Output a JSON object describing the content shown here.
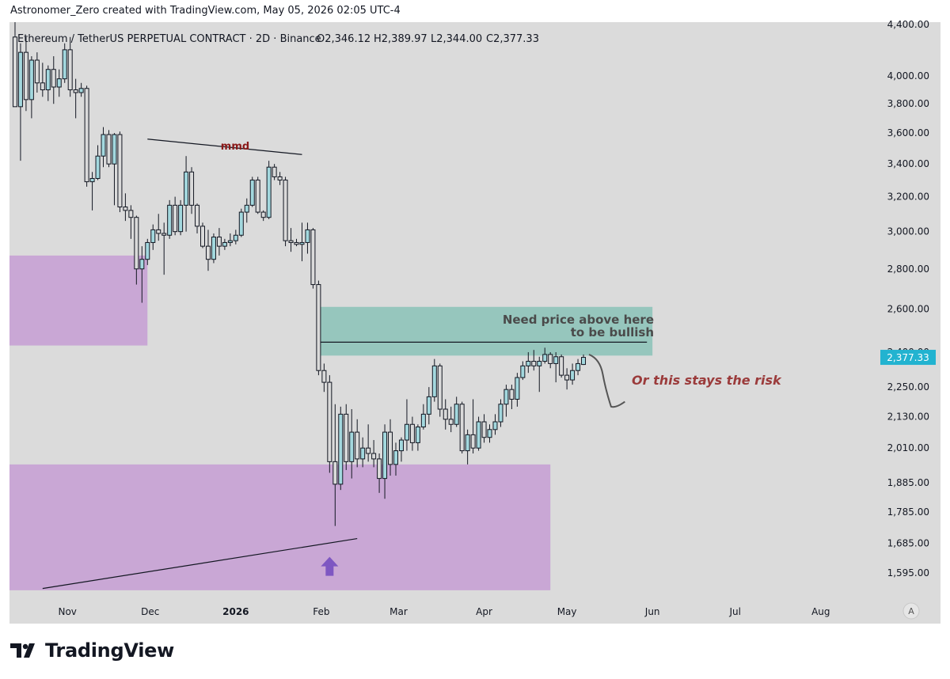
{
  "header": {
    "attribution": "Astronomer_Zero created with TradingView.com, May 05, 2026 02:05 UTC-4"
  },
  "footer": {
    "brand": "TradingView"
  },
  "chart_data": {
    "type": "candlestick",
    "title": "Ethereum / TetherUS PERPETUAL CONTRACT · 2D · Binance",
    "ohlc_label": {
      "o": "O2,346.12",
      "h": "H2,389.97",
      "l": "L2,344.00",
      "c": "C2,377.33"
    },
    "last_price": "2,377.33",
    "y_scale": "log",
    "ylim": [
      1520,
      4420
    ],
    "y_ticks": [
      {
        "v": 4400,
        "label": "4,400.00"
      },
      {
        "v": 4000,
        "label": "4,000.00"
      },
      {
        "v": 3800,
        "label": "3,800.00"
      },
      {
        "v": 3600,
        "label": "3,600.00"
      },
      {
        "v": 3400,
        "label": "3,400.00"
      },
      {
        "v": 3200,
        "label": "3,200.00"
      },
      {
        "v": 3000,
        "label": "3,000.00"
      },
      {
        "v": 2800,
        "label": "2,800.00"
      },
      {
        "v": 2600,
        "label": "2,600.00"
      },
      {
        "v": 2400,
        "label": "2,400.00"
      },
      {
        "v": 2250,
        "label": "2,250.00"
      },
      {
        "v": 2130,
        "label": "2,130.00"
      },
      {
        "v": 2010,
        "label": "2,010.00"
      },
      {
        "v": 1885,
        "label": "1,885.00"
      },
      {
        "v": 1785,
        "label": "1,785.00"
      },
      {
        "v": 1685,
        "label": "1,685.00"
      },
      {
        "v": 1595,
        "label": "1,595.00"
      }
    ],
    "x_start": "2025-10-11",
    "x_end": "2026-08-22",
    "x_ticks": [
      {
        "date": "2025-11-01",
        "label": "Nov",
        "bold": false
      },
      {
        "date": "2025-12-01",
        "label": "Dec",
        "bold": false
      },
      {
        "date": "2026-01-01",
        "label": "2026",
        "bold": true
      },
      {
        "date": "2026-02-01",
        "label": "Feb",
        "bold": false
      },
      {
        "date": "2026-03-01",
        "label": "Mar",
        "bold": false
      },
      {
        "date": "2026-04-01",
        "label": "Apr",
        "bold": false
      },
      {
        "date": "2026-05-01",
        "label": "May",
        "bold": false
      },
      {
        "date": "2026-06-01",
        "label": "Jun",
        "bold": false
      },
      {
        "date": "2026-07-01",
        "label": "Jul",
        "bold": false
      },
      {
        "date": "2026-08-01",
        "label": "Aug",
        "bold": false
      }
    ],
    "candles": [
      [
        "2025-10-13",
        4300,
        4420,
        3780,
        3780
      ],
      [
        "2025-10-15",
        3780,
        4250,
        3420,
        4180
      ],
      [
        "2025-10-17",
        4180,
        4300,
        3750,
        3830
      ],
      [
        "2025-10-19",
        3830,
        4150,
        3700,
        4120
      ],
      [
        "2025-10-21",
        4120,
        4180,
        3880,
        3950
      ],
      [
        "2025-10-23",
        3950,
        4100,
        3850,
        3900
      ],
      [
        "2025-10-25",
        3900,
        4080,
        3820,
        4050
      ],
      [
        "2025-10-27",
        4050,
        4150,
        3800,
        3920
      ],
      [
        "2025-10-29",
        3920,
        4050,
        3850,
        3980
      ],
      [
        "2025-10-31",
        3980,
        4250,
        3950,
        4200
      ],
      [
        "2025-11-02",
        4200,
        4300,
        3850,
        3900
      ],
      [
        "2025-11-04",
        3900,
        3980,
        3700,
        3880
      ],
      [
        "2025-11-06",
        3880,
        3950,
        3850,
        3910
      ],
      [
        "2025-11-08",
        3910,
        3930,
        3260,
        3290
      ],
      [
        "2025-11-10",
        3290,
        3350,
        3120,
        3310
      ],
      [
        "2025-11-12",
        3310,
        3520,
        3300,
        3450
      ],
      [
        "2025-11-14",
        3450,
        3640,
        3380,
        3590
      ],
      [
        "2025-11-16",
        3590,
        3620,
        3380,
        3400
      ],
      [
        "2025-11-18",
        3400,
        3600,
        3150,
        3590
      ],
      [
        "2025-11-20",
        3590,
        3610,
        3110,
        3140
      ],
      [
        "2025-11-22",
        3140,
        3220,
        3060,
        3120
      ],
      [
        "2025-11-24",
        3120,
        3150,
        2960,
        3080
      ],
      [
        "2025-11-26",
        3080,
        3090,
        2720,
        2800
      ],
      [
        "2025-11-28",
        2800,
        2920,
        2630,
        2850
      ],
      [
        "2025-11-30",
        2850,
        2960,
        2820,
        2940
      ],
      [
        "2025-12-02",
        2940,
        3040,
        2900,
        3010
      ],
      [
        "2025-12-04",
        3010,
        3100,
        2950,
        2990
      ],
      [
        "2025-12-06",
        2990,
        3050,
        2770,
        2980
      ],
      [
        "2025-12-08",
        2980,
        3180,
        2960,
        3150
      ],
      [
        "2025-12-10",
        3150,
        3200,
        2980,
        3000
      ],
      [
        "2025-12-12",
        3000,
        3180,
        2980,
        3150
      ],
      [
        "2025-12-14",
        3150,
        3450,
        3000,
        3350
      ],
      [
        "2025-12-16",
        3350,
        3380,
        3100,
        3150
      ],
      [
        "2025-12-18",
        3150,
        3160,
        2990,
        3030
      ],
      [
        "2025-12-20",
        3030,
        3050,
        2910,
        2920
      ],
      [
        "2025-12-22",
        2920,
        3010,
        2790,
        2850
      ],
      [
        "2025-12-24",
        2850,
        2990,
        2830,
        2970
      ],
      [
        "2025-12-26",
        2970,
        3020,
        2870,
        2920
      ],
      [
        "2025-12-28",
        2920,
        2960,
        2900,
        2940
      ],
      [
        "2025-12-30",
        2940,
        2990,
        2920,
        2950
      ],
      [
        "2026-01-01",
        2950,
        3010,
        2930,
        2980
      ],
      [
        "2026-01-03",
        2980,
        3130,
        2970,
        3110
      ],
      [
        "2026-01-05",
        3110,
        3190,
        3050,
        3150
      ],
      [
        "2026-01-07",
        3150,
        3320,
        3140,
        3300
      ],
      [
        "2026-01-09",
        3300,
        3320,
        3100,
        3110
      ],
      [
        "2026-01-11",
        3110,
        3120,
        3060,
        3080
      ],
      [
        "2026-01-13",
        3080,
        3420,
        3070,
        3380
      ],
      [
        "2026-01-15",
        3380,
        3400,
        3300,
        3320
      ],
      [
        "2026-01-17",
        3320,
        3350,
        3270,
        3300
      ],
      [
        "2026-01-19",
        3300,
        3320,
        2920,
        2950
      ],
      [
        "2026-01-21",
        2950,
        3020,
        2890,
        2940
      ],
      [
        "2026-01-23",
        2940,
        2960,
        2920,
        2930
      ],
      [
        "2026-01-25",
        2930,
        3050,
        2840,
        2940
      ],
      [
        "2026-01-27",
        2940,
        3050,
        2880,
        3010
      ],
      [
        "2026-01-29",
        3010,
        3020,
        2700,
        2720
      ],
      [
        "2026-01-31",
        2720,
        2740,
        2300,
        2320
      ],
      [
        "2026-02-02",
        2320,
        2350,
        2230,
        2270
      ],
      [
        "2026-02-04",
        2270,
        2300,
        1920,
        1960
      ],
      [
        "2026-02-06",
        1960,
        2180,
        1740,
        1880
      ],
      [
        "2026-02-08",
        1880,
        2170,
        1860,
        2140
      ],
      [
        "2026-02-10",
        2140,
        2180,
        1930,
        1960
      ],
      [
        "2026-02-12",
        1960,
        2160,
        1900,
        2070
      ],
      [
        "2026-02-14",
        2070,
        2120,
        1940,
        1970
      ],
      [
        "2026-02-16",
        1970,
        2050,
        1940,
        2010
      ],
      [
        "2026-02-18",
        2010,
        2100,
        1960,
        1990
      ],
      [
        "2026-02-20",
        1990,
        2040,
        1940,
        1970
      ],
      [
        "2026-02-22",
        1970,
        1990,
        1850,
        1900
      ],
      [
        "2026-02-24",
        1900,
        2100,
        1830,
        2070
      ],
      [
        "2026-02-26",
        2070,
        2120,
        1910,
        1950
      ],
      [
        "2026-02-28",
        1950,
        2030,
        1910,
        2000
      ],
      [
        "2026-03-02",
        2000,
        2050,
        1960,
        2040
      ],
      [
        "2026-03-04",
        2040,
        2200,
        2000,
        2100
      ],
      [
        "2026-03-06",
        2100,
        2130,
        2000,
        2030
      ],
      [
        "2026-03-08",
        2030,
        2100,
        2000,
        2090
      ],
      [
        "2026-03-10",
        2090,
        2180,
        2080,
        2140
      ],
      [
        "2026-03-12",
        2140,
        2250,
        2100,
        2210
      ],
      [
        "2026-03-14",
        2210,
        2370,
        2190,
        2340
      ],
      [
        "2026-03-16",
        2340,
        2350,
        2130,
        2160
      ],
      [
        "2026-03-18",
        2160,
        2200,
        2080,
        2120
      ],
      [
        "2026-03-20",
        2120,
        2170,
        2070,
        2100
      ],
      [
        "2026-03-22",
        2100,
        2210,
        2090,
        2180
      ],
      [
        "2026-03-24",
        2180,
        2190,
        1990,
        2000
      ],
      [
        "2026-03-26",
        2000,
        2080,
        1950,
        2060
      ],
      [
        "2026-03-28",
        2060,
        2200,
        1990,
        2010
      ],
      [
        "2026-03-30",
        2010,
        2130,
        2000,
        2110
      ],
      [
        "2026-04-01",
        2110,
        2140,
        2030,
        2050
      ],
      [
        "2026-04-03",
        2050,
        2100,
        2030,
        2080
      ],
      [
        "2026-04-05",
        2080,
        2140,
        2060,
        2110
      ],
      [
        "2026-04-07",
        2110,
        2200,
        2090,
        2180
      ],
      [
        "2026-04-09",
        2180,
        2260,
        2130,
        2240
      ],
      [
        "2026-04-11",
        2240,
        2260,
        2160,
        2200
      ],
      [
        "2026-04-13",
        2200,
        2310,
        2170,
        2290
      ],
      [
        "2026-04-15",
        2290,
        2360,
        2280,
        2340
      ],
      [
        "2026-04-17",
        2340,
        2400,
        2310,
        2360
      ],
      [
        "2026-04-19",
        2360,
        2410,
        2320,
        2340
      ],
      [
        "2026-04-21",
        2340,
        2380,
        2230,
        2360
      ],
      [
        "2026-04-23",
        2360,
        2420,
        2350,
        2390
      ],
      [
        "2026-04-25",
        2390,
        2400,
        2330,
        2350
      ],
      [
        "2026-04-27",
        2350,
        2400,
        2270,
        2380
      ],
      [
        "2026-04-29",
        2380,
        2390,
        2290,
        2300
      ],
      [
        "2026-05-01",
        2300,
        2330,
        2240,
        2280
      ],
      [
        "2026-05-03",
        2280,
        2350,
        2260,
        2320
      ],
      [
        "2026-05-05",
        2320,
        2370,
        2300,
        2350
      ],
      [
        "2026-05-07",
        2346.12,
        2389.97,
        2344.0,
        2377.33
      ]
    ],
    "zones": [
      {
        "name": "demand-zone-upper",
        "from": "2025-10-11",
        "to": "2025-11-30",
        "top": 2870,
        "bottom": 2430,
        "color": "#c9a7d5"
      },
      {
        "name": "demand-zone-lower",
        "from": "2025-10-11",
        "to": "2026-04-25",
        "top": 1950,
        "bottom": 1545,
        "color": "#c9a7d5"
      },
      {
        "name": "resistance-zone",
        "from": "2026-01-31",
        "to": "2026-06-01",
        "top": 2610,
        "bottom": 2385,
        "color": "#96c6bd"
      }
    ],
    "lines": [
      {
        "name": "resistance-line",
        "from": [
          "2026-01-31",
          2445
        ],
        "to": [
          "2026-05-30",
          2445
        ]
      },
      {
        "name": "mmd-divergence-line",
        "from": [
          "2025-11-30",
          3560
        ],
        "to": [
          "2026-01-25",
          3460
        ]
      },
      {
        "name": "trend-line",
        "from": [
          "2025-10-23",
          1550
        ],
        "to": [
          "2026-02-14",
          1700
        ]
      }
    ],
    "annotations": {
      "mmd": "mmd",
      "bullish_line1": "Need price above here",
      "bullish_line2": "to be bullish",
      "risk": "Or this stays the risk"
    },
    "projection": [
      [
        "2026-05-09",
        2390
      ],
      [
        "2026-05-13",
        2370
      ],
      [
        "2026-05-15",
        2240
      ],
      [
        "2026-05-17",
        2170
      ],
      [
        "2026-05-22",
        2190
      ]
    ],
    "arrow_at": [
      "2026-02-04",
      1615
    ],
    "colors": {
      "bull_body": "#a3d8de",
      "bear_body": "#dadada",
      "candle_outline": "#131722",
      "plot_bg": "#dbdbdb",
      "text_dark_red": "#8b1a1a",
      "risk_text": "#9b3b3b",
      "last_price_bg": "#22b3d0",
      "arrow": "#7e57c2",
      "projection": "#555555"
    },
    "auto_scale_label": "A"
  }
}
